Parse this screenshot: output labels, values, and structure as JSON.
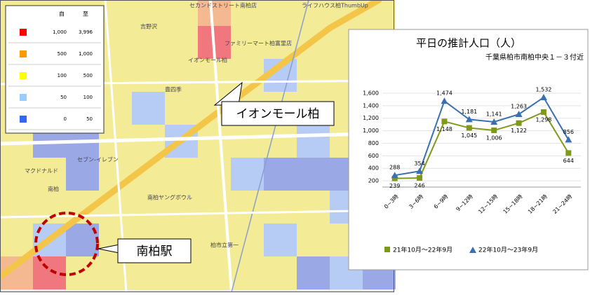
{
  "legend": {
    "headers": [
      "自",
      "至"
    ],
    "rows": [
      {
        "color": "#ff0000",
        "from": "1,000",
        "to": "3,996"
      },
      {
        "color": "#ff9900",
        "from": "500",
        "to": "1,000"
      },
      {
        "color": "#ffff00",
        "from": "100",
        "to": "500"
      },
      {
        "color": "#99ccff",
        "from": "50",
        "to": "100"
      },
      {
        "color": "#3366ff",
        "from": "0",
        "to": "50"
      }
    ]
  },
  "map_labels": [
    "セカンドストリート南柏店",
    "ライフハウス柏ThumbUp",
    "吉野沢",
    "ファミリーマート柏富里店",
    "イオンモール柏",
    "セブン-イレブン",
    "マクドナルド",
    "南柏",
    "南柏ヤングボウル",
    "柏市立第一",
    "豊四季"
  ],
  "callouts": {
    "mall": "イオンモール柏",
    "station": "南柏駅"
  },
  "chart_data": {
    "type": "line",
    "title": "平日の推計人口（人）",
    "subtitle": "千葉県柏市南柏中央１－３付近",
    "categories": [
      "0~3時",
      "3~6時",
      "6~9時",
      "9~12時",
      "12~15時",
      "15~18時",
      "18~21時",
      "21~24時"
    ],
    "series": [
      {
        "name": "21年10月～22年9月",
        "color": "#7f9a1a",
        "marker": "square",
        "values": [
          239,
          246,
          1148,
          1045,
          1006,
          1122,
          1298,
          644
        ],
        "value_labels": [
          "239",
          "246",
          "1,148",
          "1,045",
          "1,006",
          "1,122",
          "1,298",
          "644"
        ]
      },
      {
        "name": "22年10月～23年9月",
        "color": "#3a6fb0",
        "marker": "triangle",
        "values": [
          288,
          354,
          1474,
          1181,
          1141,
          1263,
          1532,
          856
        ],
        "value_labels": [
          "288",
          "354",
          "1,474",
          "1,181",
          "1,141",
          "1,263",
          "1,532",
          "856"
        ]
      }
    ],
    "ylim": [
      100,
      1700
    ],
    "yticks": [
      200,
      400,
      600,
      800,
      {
        "value": 1000,
        "label": "1,000"
      },
      {
        "value": 1200,
        "label": "1,200"
      },
      {
        "value": 1400,
        "label": "1,400"
      },
      {
        "value": 1600,
        "label": "1,600"
      }
    ],
    "grid": true
  }
}
